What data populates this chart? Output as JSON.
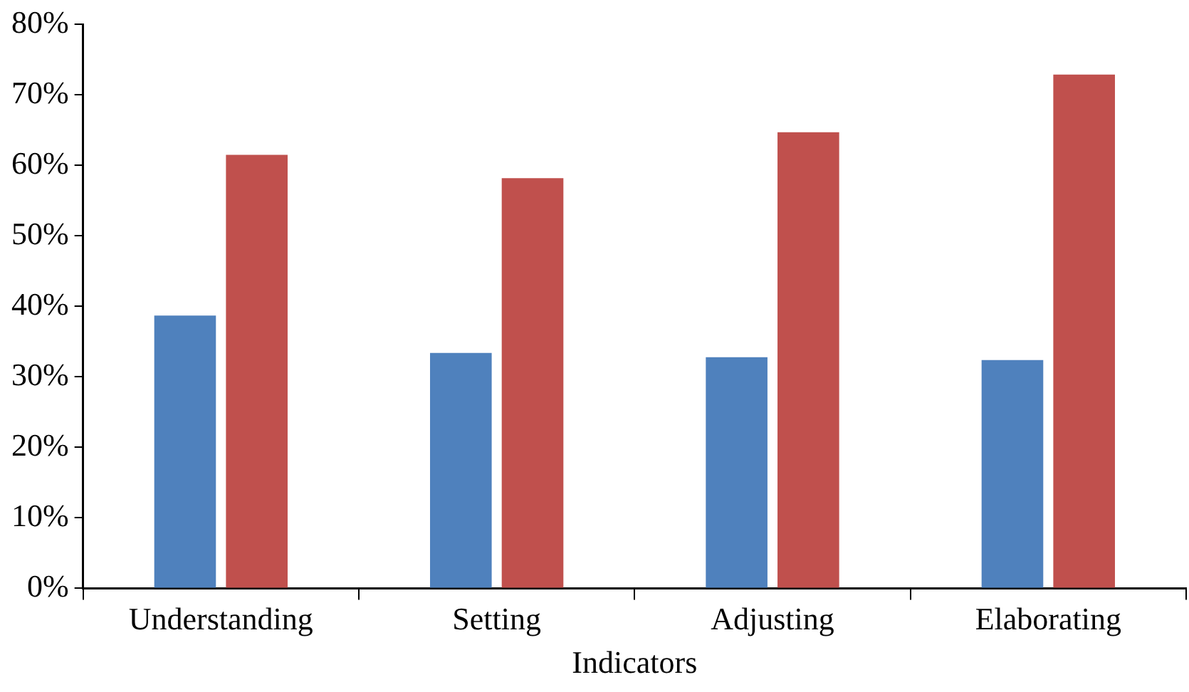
{
  "chart_data": {
    "type": "bar",
    "xlabel": "Indicators",
    "categories": [
      "Understanding",
      "Setting",
      "Adjusting",
      "Elaborating"
    ],
    "series": [
      {
        "color": "#4f81bd",
        "values": [
          38.7,
          33.4,
          32.8,
          32.4
        ]
      },
      {
        "color": "#c0504d",
        "values": [
          61.5,
          58.2,
          64.7,
          72.9
        ]
      }
    ],
    "ylim": [
      0,
      80
    ],
    "yticks": [
      {
        "value": 0,
        "label": "0%"
      },
      {
        "value": 10,
        "label": "10%"
      },
      {
        "value": 20,
        "label": "20%"
      },
      {
        "value": 30,
        "label": "30%"
      },
      {
        "value": 40,
        "label": "40%"
      },
      {
        "value": 50,
        "label": "50%"
      },
      {
        "value": 60,
        "label": "60%"
      },
      {
        "value": 70,
        "label": "70%"
      },
      {
        "value": 80,
        "label": "80%"
      }
    ],
    "grid": false,
    "legend": false
  }
}
